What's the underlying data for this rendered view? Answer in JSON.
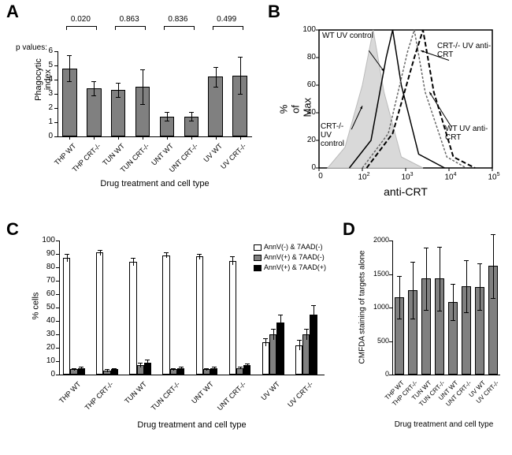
{
  "panelA": {
    "label": "A",
    "ylabel": "Phagocytic index",
    "xlabel": "Drug treatment and cell type",
    "pvalue_prefix": "p values:",
    "ylim": [
      0,
      6
    ],
    "ytick_step": 1,
    "categories": [
      "THP WT",
      "THP CRT-/-",
      "TUN WT",
      "TUN CRT-/-",
      "UNT WT",
      "UNT CRT-/-",
      "UV WT",
      "UV CRT-/-"
    ],
    "values": [
      4.8,
      3.4,
      3.3,
      3.5,
      1.4,
      1.4,
      4.2,
      4.3
    ],
    "err": [
      0.9,
      0.5,
      0.5,
      1.2,
      0.3,
      0.3,
      0.7,
      1.3
    ],
    "pvalues": [
      "0.020",
      "0.863",
      "0.836",
      "0.499"
    ],
    "bar_color": "#808080",
    "bar_width": 0.6
  },
  "panelB": {
    "label": "B",
    "xlabel": "anti-CRT",
    "ylabel": "% of Max",
    "labels": {
      "wt_uv_control": "WT UV control",
      "crt_uv_anti": "CRT-/- UV anti-CRT",
      "crt_uv_control": "CRT-/- UV control",
      "wt_uv_anti": "WT UV anti-CRT"
    },
    "fill_color": "#d9d9d9",
    "curves": {
      "crt_control_fill": {
        "stroke": "#cccccc",
        "fill": "#d9d9d9",
        "dash": "none"
      },
      "wt_control": {
        "stroke": "#000000",
        "fill": "none",
        "dash": "none",
        "width": 1.5
      },
      "wt_anti": {
        "stroke": "#000000",
        "fill": "none",
        "dash": "6,3",
        "width": 2
      },
      "crt_anti": {
        "stroke": "#666666",
        "fill": "none",
        "dash": "3,2",
        "width": 1.5
      }
    },
    "xticks": [
      "0",
      "10^2",
      "10^3",
      "10^4",
      "10^5"
    ],
    "yticks": [
      0,
      20,
      40,
      60,
      80,
      100
    ]
  },
  "panelC": {
    "label": "C",
    "xlabel": "Drug treatment and cell type",
    "ylabel": "% cells",
    "ylim": [
      0,
      100
    ],
    "ytick_step": 10,
    "categories": [
      "THP WT",
      "THP CRT-/-",
      "TUN WT",
      "TUN CRT-/-",
      "UNT WT",
      "UNT CRT-/-",
      "UV WT",
      "UV CRT-/-"
    ],
    "legend": [
      "AnnV(-) & 7AAD(-)",
      "AnnV(+) & 7AAD(-)",
      "AnnV(+) & 7AAD(+)"
    ],
    "series_colors": [
      "#ffffff",
      "#808080",
      "#000000"
    ],
    "values": [
      [
        87,
        4,
        5
      ],
      [
        91,
        3,
        4
      ],
      [
        84,
        7,
        9
      ],
      [
        89,
        4,
        5
      ],
      [
        88,
        4,
        5
      ],
      [
        85,
        5,
        7
      ],
      [
        24,
        30,
        39
      ],
      [
        22,
        30,
        45
      ]
    ],
    "err": [
      [
        3,
        1,
        1
      ],
      [
        2,
        1,
        1
      ],
      [
        3,
        2,
        2
      ],
      [
        2,
        1,
        1
      ],
      [
        2,
        1,
        1
      ],
      [
        3,
        1,
        1
      ],
      [
        3,
        4,
        6
      ],
      [
        4,
        4,
        7
      ]
    ]
  },
  "panelD": {
    "label": "D",
    "xlabel": "Drug treatment and cell type",
    "ylabel": "CMFDA staining of targets alone",
    "ylim": [
      0,
      2000
    ],
    "ytick_step": 500,
    "categories": [
      "THP WT",
      "THP CRT-/-",
      "TUN WT",
      "TUN CRT-/-",
      "UNT WT",
      "UNT CRT-/-",
      "UV WT",
      "UV CRT-/-"
    ],
    "values": [
      1150,
      1260,
      1430,
      1430,
      1080,
      1320,
      1310,
      1620
    ],
    "err": [
      320,
      420,
      460,
      480,
      270,
      390,
      350,
      480
    ],
    "bar_color": "#808080"
  }
}
